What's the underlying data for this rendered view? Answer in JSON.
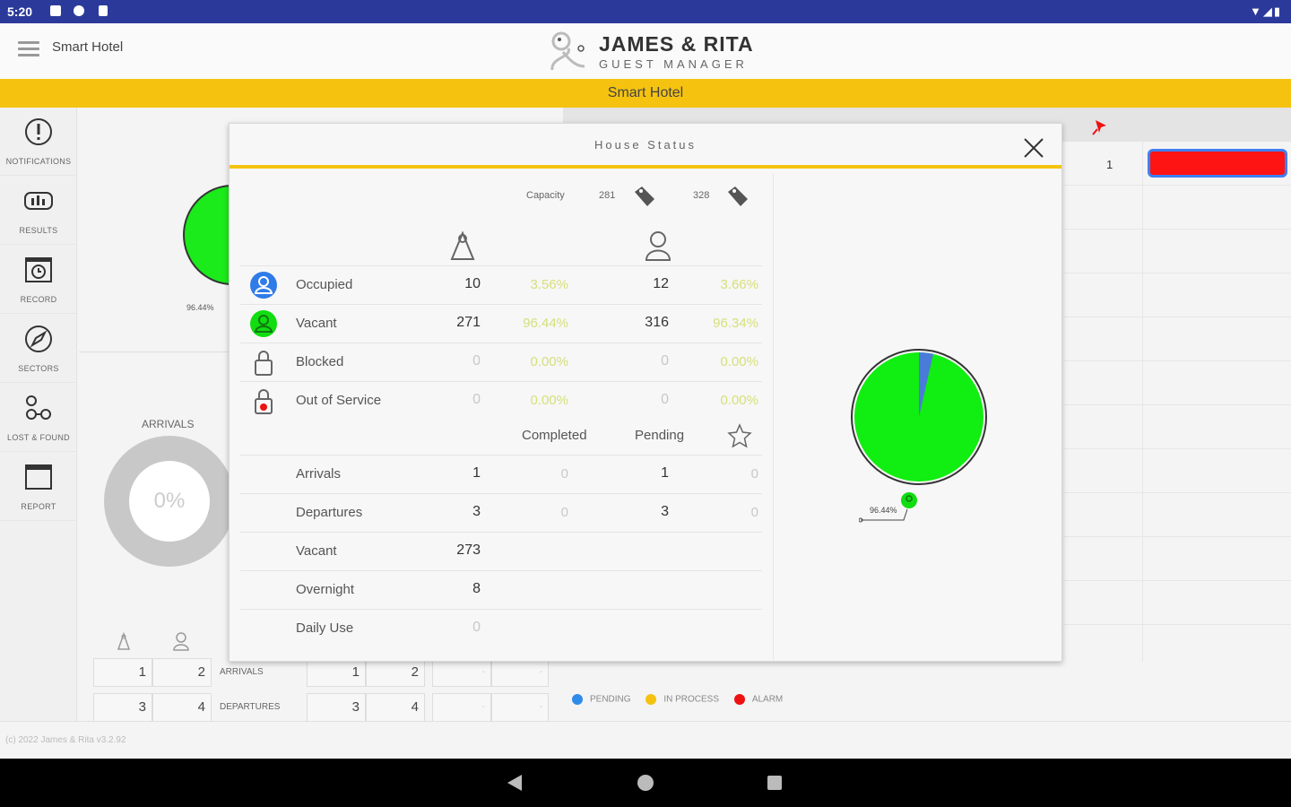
{
  "status_bar": {
    "time": "5:20"
  },
  "header": {
    "app_name": "Smart Hotel",
    "logo_title": "JAMES & RITA",
    "logo_subtitle": "GUEST MANAGER"
  },
  "banner": {
    "title": "Smart Hotel"
  },
  "sidebar": {
    "items": [
      {
        "label": "NOTIFICATIONS",
        "icon": "exclamation-icon"
      },
      {
        "label": "RESULTS",
        "icon": "results-icon"
      },
      {
        "label": "RECORD",
        "icon": "calendar-clock-icon"
      },
      {
        "label": "SECTORS",
        "icon": "compass-icon"
      },
      {
        "label": "LOST & FOUND",
        "icon": "glasses-icon"
      },
      {
        "label": "REPORT",
        "icon": "calendar-icon"
      }
    ]
  },
  "background": {
    "chart_label": "96.44%",
    "arrivals_title": "ARRIVALS",
    "donut_value": "0%",
    "table": {
      "row1": {
        "a": "1",
        "b": "2",
        "label": "ARRIVALS",
        "c": "1",
        "d": "2",
        "e": "-",
        "f": "-"
      },
      "row2": {
        "a": "3",
        "b": "4",
        "label": "DEPARTURES",
        "c": "3",
        "d": "4",
        "e": "-",
        "f": "-"
      }
    },
    "right_value": "1",
    "legend": [
      {
        "label": "PENDING",
        "color": "#2f8be8"
      },
      {
        "label": "IN PROCESS",
        "color": "#f5c30f"
      },
      {
        "label": "ALARM",
        "color": "#ee1111"
      }
    ],
    "copyright": "(c) 2022 James & Rita v3.2.92"
  },
  "modal": {
    "title": "House Status",
    "capacity_label": "Capacity",
    "capacity_rooms": "281",
    "capacity_beds": "328",
    "status_rows": [
      {
        "name": "Occupied",
        "icon": "occupied-person-icon",
        "rooms": "10",
        "rooms_pct": "3.56%",
        "beds": "12",
        "beds_pct": "3.66%"
      },
      {
        "name": "Vacant",
        "icon": "vacant-person-icon",
        "rooms": "271",
        "rooms_pct": "96.44%",
        "beds": "316",
        "beds_pct": "96.34%"
      },
      {
        "name": "Blocked",
        "icon": "padlock-icon",
        "rooms": "0",
        "rooms_pct": "0.00%",
        "beds": "0",
        "beds_pct": "0.00%"
      },
      {
        "name": "Out of Service",
        "icon": "padlock-alert-icon",
        "rooms": "0",
        "rooms_pct": "0.00%",
        "beds": "0",
        "beds_pct": "0.00%"
      }
    ],
    "completed_label": "Completed",
    "pending_label": "Pending",
    "movement_rows": [
      {
        "name": "Arrivals",
        "total": "1",
        "completed": "0",
        "pending": "1",
        "extra": "0"
      },
      {
        "name": "Departures",
        "total": "3",
        "completed": "0",
        "pending": "3",
        "extra": "0"
      },
      {
        "name": "Vacant",
        "total": "273",
        "completed": "",
        "pending": "",
        "extra": ""
      },
      {
        "name": "Overnight",
        "total": "8",
        "completed": "",
        "pending": "",
        "extra": ""
      },
      {
        "name": "Daily Use",
        "total": "0",
        "completed": "",
        "pending": "",
        "extra": ""
      }
    ],
    "pie_label": "96.44%",
    "pie_colors": {
      "vacant": "#11ee11",
      "occupied": "#4a7bd8"
    },
    "pie_vacant_fraction": 0.9644
  }
}
